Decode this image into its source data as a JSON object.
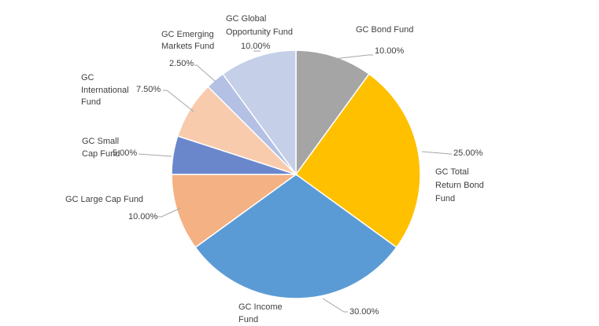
{
  "chart_data": {
    "type": "pie",
    "title": "",
    "start_angle_deg": 0,
    "direction": "clockwise",
    "legend": "none",
    "slices": [
      {
        "name": "GC Bond Fund",
        "value": 10.0,
        "label": "10.00%",
        "color": "#a5a5a5"
      },
      {
        "name": "GC Total Return Bond Fund",
        "value": 25.0,
        "label": "25.00%",
        "color": "#ffc000"
      },
      {
        "name": "GC Income Fund",
        "value": 30.0,
        "label": "30.00%",
        "color": "#5b9bd5"
      },
      {
        "name": "GC Large Cap Fund",
        "value": 10.0,
        "label": "10.00%",
        "color": "#f4b183"
      },
      {
        "name": "GC Small Cap Fund",
        "value": 5.0,
        "label": "5.00%",
        "color": "#6a87cc"
      },
      {
        "name": "GC International Fund",
        "value": 7.5,
        "label": "7.50%",
        "color": "#f8cbad"
      },
      {
        "name": "GC Emerging Markets Fund",
        "value": 2.5,
        "label": "2.50%",
        "color": "#b4c0e4"
      },
      {
        "name": "GC Global Opportunity Fund",
        "value": 10.0,
        "label": "10.00%",
        "color": "#c5cfe8"
      }
    ]
  }
}
